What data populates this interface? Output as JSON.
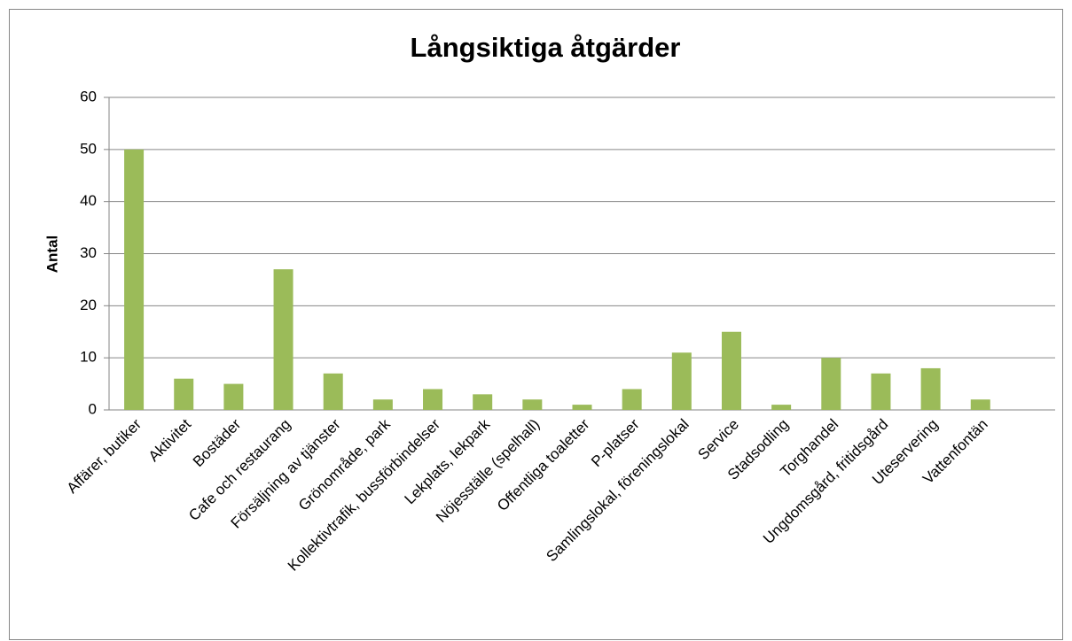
{
  "chart_data": {
    "type": "bar",
    "title": "Långsiktiga åtgärder",
    "y_label": "Antal",
    "categories": [
      "Affärer, butiker",
      "Aktivitet",
      "Bostäder",
      "Cafe och restaurang",
      "Försäljning av tjänster",
      "Grönområde, park",
      "Kollektivtrafik, bussförbindelser",
      "Lekplats, lekpark",
      "Nöjesställe (spelhall)",
      "Offentliga toaletter",
      "P-platser",
      "Samlingslokal, föreningslokal",
      "Service",
      "Stadsodling",
      "Torghandel",
      "Ungdomsgård, fritidsgård",
      "Uteservering",
      "Vattenfontän",
      null
    ],
    "values": [
      50,
      6,
      5,
      27,
      7,
      2,
      4,
      3,
      2,
      1,
      4,
      11,
      15,
      1,
      10,
      7,
      8,
      2,
      null
    ],
    "color": "#9bbb59",
    "ylim": [
      0,
      60
    ],
    "yticks": [
      0,
      10,
      20,
      30,
      40,
      50,
      60
    ],
    "grid": true
  }
}
